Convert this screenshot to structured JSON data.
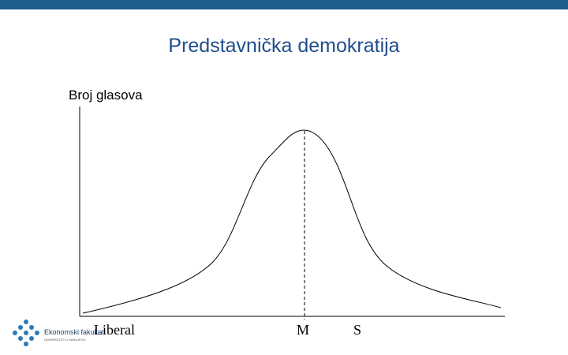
{
  "title": "Predstavnička demokratija",
  "y_axis_label": "Broj glasova",
  "x_labels": [
    "Liberal",
    "M",
    "S"
  ],
  "logo": {
    "name": "Ekonomski fakultet",
    "university": "UNIVERZITET U SARAJEVU"
  }
}
